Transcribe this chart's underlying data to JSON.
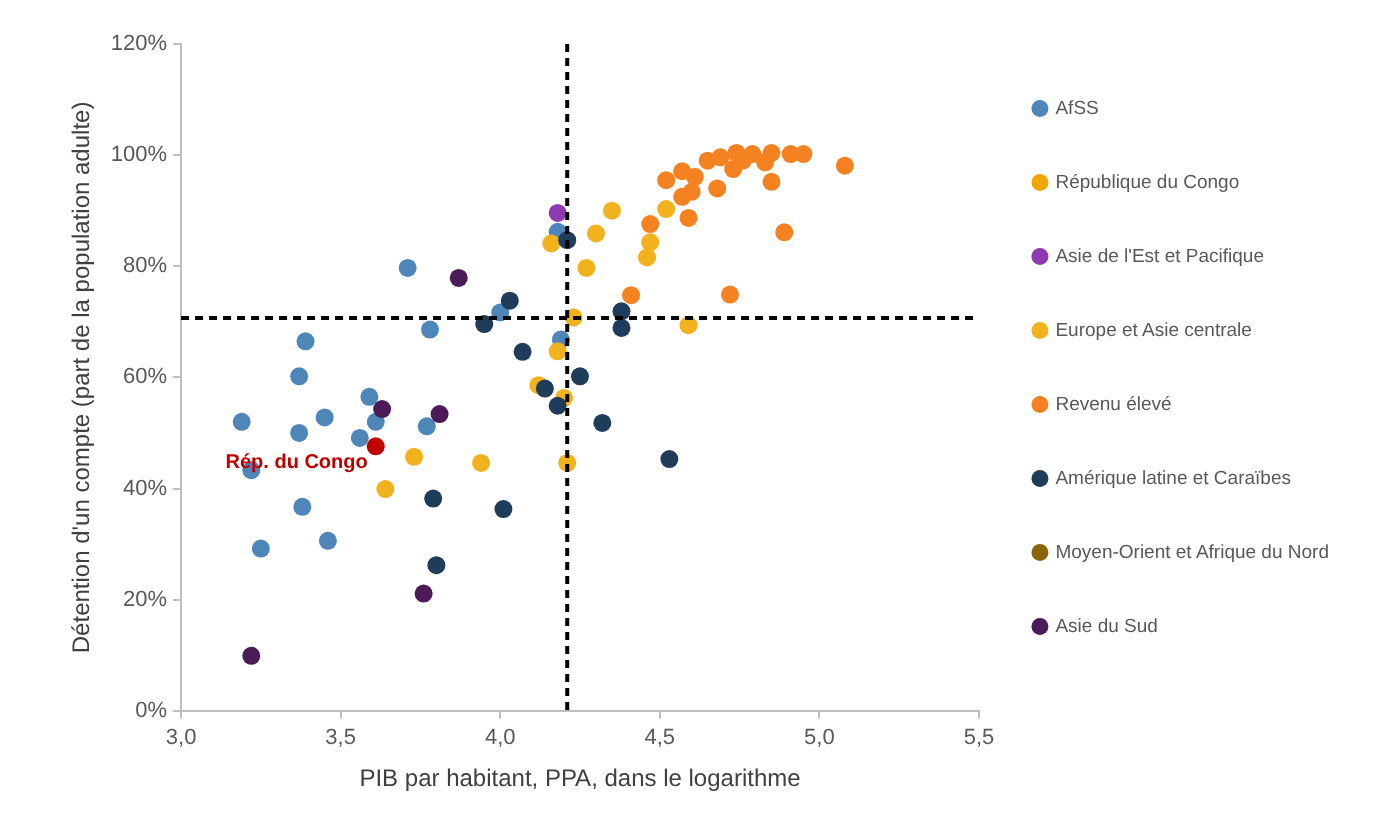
{
  "chart_data": {
    "type": "scatter",
    "xlabel": "PIB par habitant, PPA, dans le logarithme",
    "ylabel": "Détention d'un compte (part de la population adulte)",
    "xlim": [
      3.0,
      5.5
    ],
    "xticks": [
      {
        "value": 3.0,
        "label": "3,0"
      },
      {
        "value": 3.5,
        "label": "3,5"
      },
      {
        "value": 4.0,
        "label": "4,0"
      },
      {
        "value": 4.5,
        "label": "4,5"
      },
      {
        "value": 5.0,
        "label": "5,0"
      },
      {
        "value": 5.5,
        "label": "5,5"
      }
    ],
    "ylim": [
      0,
      120
    ],
    "yticks": [
      {
        "value": 0,
        "label": "0%"
      },
      {
        "value": 20,
        "label": "20%"
      },
      {
        "value": 40,
        "label": "40%"
      },
      {
        "value": 60,
        "label": "60%"
      },
      {
        "value": 80,
        "label": "80%"
      },
      {
        "value": 100,
        "label": "100%"
      },
      {
        "value": 120,
        "label": "120%"
      }
    ],
    "grid": false,
    "legend": "right",
    "marker": "circle",
    "ref_lines": [
      {
        "axis": "x",
        "value": 4.21,
        "line_style": "dashed",
        "color": "#000000"
      },
      {
        "axis": "y",
        "value": 70.7,
        "line_style": "dashed",
        "color": "#000000"
      }
    ],
    "annotations": [
      {
        "text": "Rép. du Congo",
        "x": 3.61,
        "y": 47.6
      }
    ],
    "series": [
      {
        "name": "AfSS",
        "color": "#4f86b9",
        "x": [
          3.71,
          3.39,
          3.78,
          3.37,
          3.59,
          3.19,
          3.45,
          3.61,
          3.37,
          3.56,
          3.77,
          3.22,
          3.38,
          3.46,
          3.25,
          4.19,
          4.0,
          4.18
        ],
        "values": [
          79.7,
          66.5,
          68.6,
          60.2,
          56.5,
          52.0,
          52.8,
          52.0,
          50.0,
          49.1,
          51.2,
          43.3,
          36.7,
          30.6,
          29.2,
          66.8,
          71.7,
          86.2
        ]
      },
      {
        "name": "République du Congo",
        "color": "#f0a800"
      },
      {
        "name": "Asie de l'Est et Pacifique",
        "color": "#8e3ab0",
        "x": [
          4.18
        ],
        "values": [
          89.6
        ]
      },
      {
        "name": "Europe et Asie centrale",
        "color": "#f2b21e",
        "x": [
          4.16,
          4.27,
          4.23,
          4.18,
          4.12,
          4.2,
          3.73,
          3.94,
          4.21,
          3.64,
          4.3,
          4.35,
          4.52,
          4.47,
          4.46,
          4.59
        ],
        "values": [
          84.1,
          79.7,
          70.8,
          64.7,
          58.6,
          56.3,
          45.7,
          44.6,
          44.6,
          39.9,
          85.9,
          90.0,
          90.3,
          84.3,
          81.6,
          69.4
        ]
      },
      {
        "name": "Revenu élevé",
        "color": "#f58220",
        "x": [
          4.41,
          4.72,
          4.47,
          4.59,
          4.57,
          4.6,
          4.52,
          4.57,
          4.61,
          4.68,
          4.65,
          4.69,
          4.73,
          4.74,
          4.79,
          4.83,
          4.85,
          4.85,
          4.91,
          4.95,
          5.08,
          4.89,
          4.76
        ],
        "values": [
          74.8,
          74.9,
          87.6,
          88.7,
          92.5,
          93.4,
          95.5,
          97.1,
          96.1,
          94.0,
          99.0,
          99.6,
          97.5,
          100.4,
          100.2,
          98.7,
          100.4,
          95.2,
          100.2,
          100.2,
          98.1,
          86.1,
          99.0
        ]
      },
      {
        "name": "Amérique latine et Caraïbes",
        "color": "#1f3d5a",
        "x": [
          4.21,
          4.03,
          3.95,
          4.07,
          4.25,
          4.14,
          4.18,
          4.32,
          3.79,
          4.01,
          3.8,
          4.38,
          4.38,
          4.53
        ],
        "values": [
          84.7,
          73.8,
          69.6,
          64.6,
          60.2,
          58.0,
          54.9,
          51.8,
          38.2,
          36.3,
          26.2,
          71.9,
          68.9,
          45.3
        ]
      },
      {
        "name": "Moyen-Orient et Afrique du Nord",
        "color": "#8b6508"
      },
      {
        "name": "Asie du Sud",
        "color": "#4b1b5a",
        "x": [
          3.87,
          3.63,
          3.81,
          3.76,
          3.22
        ],
        "values": [
          77.9,
          54.3,
          53.4,
          21.1,
          9.9
        ]
      },
      {
        "color": "#c00000",
        "x": [
          3.61
        ],
        "values": [
          47.6
        ]
      }
    ]
  }
}
